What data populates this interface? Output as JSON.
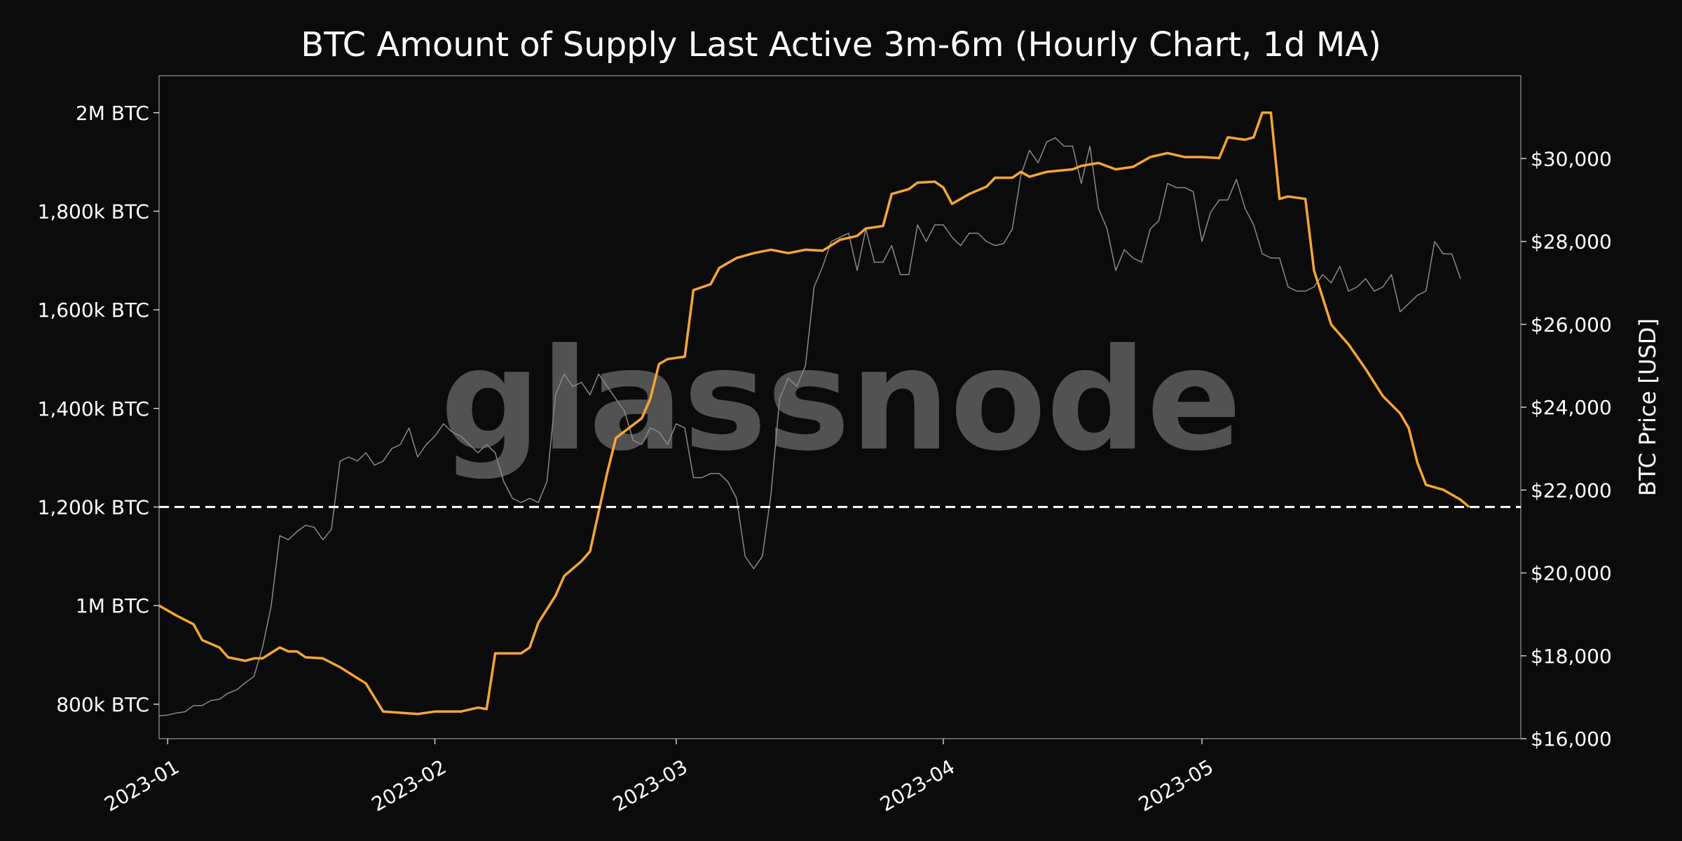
{
  "chart_data": {
    "type": "line",
    "title": "BTC Amount of Supply Last Active 3m-6m (Hourly Chart, 1d MA)",
    "watermark": "glassnode",
    "y_left": {
      "range": [
        730000,
        2075000
      ],
      "ticks": [
        {
          "value": 800000,
          "label": "800k BTC"
        },
        {
          "value": 1000000,
          "label": "1M BTC"
        },
        {
          "value": 1200000,
          "label": "1,200k BTC"
        },
        {
          "value": 1400000,
          "label": "1,400k BTC"
        },
        {
          "value": 1600000,
          "label": "1,600k BTC"
        },
        {
          "value": 1800000,
          "label": "1,800k BTC"
        },
        {
          "value": 2000000,
          "label": "2M BTC"
        }
      ]
    },
    "y_right": {
      "label": "BTC Price [USD]",
      "range": [
        16000,
        32000
      ],
      "ticks": [
        {
          "value": 16000,
          "label": "$16,000"
        },
        {
          "value": 18000,
          "label": "$18,000"
        },
        {
          "value": 20000,
          "label": "$20,000"
        },
        {
          "value": 22000,
          "label": "$22,000"
        },
        {
          "value": 24000,
          "label": "$24,000"
        },
        {
          "value": 26000,
          "label": "$26,000"
        },
        {
          "value": 28000,
          "label": "$28,000"
        },
        {
          "value": 30000,
          "label": "$30,000"
        }
      ]
    },
    "x_axis": {
      "range": [
        "2022-12-31",
        "2023-06-07"
      ],
      "ticks": [
        {
          "value": "2023-01-01",
          "label": "2023-01"
        },
        {
          "value": "2023-02-01",
          "label": "2023-02"
        },
        {
          "value": "2023-03-01",
          "label": "2023-03"
        },
        {
          "value": "2023-04-01",
          "label": "2023-04"
        },
        {
          "value": "2023-05-01",
          "label": "2023-05"
        }
      ]
    },
    "reference_line": {
      "value": 1200000,
      "style": "dashed",
      "color": "#ffffff"
    },
    "series": [
      {
        "axis": "left",
        "color": "#f7a634",
        "points": [
          [
            "2022-12-31",
            1000000
          ],
          [
            "2023-01-02",
            980000
          ],
          [
            "2023-01-04",
            962000
          ],
          [
            "2023-01-05",
            930000
          ],
          [
            "2023-01-07",
            915000
          ],
          [
            "2023-01-08",
            895000
          ],
          [
            "2023-01-10",
            888000
          ],
          [
            "2023-01-11",
            893000
          ],
          [
            "2023-01-12",
            893000
          ],
          [
            "2023-01-14",
            915000
          ],
          [
            "2023-01-15",
            907000
          ],
          [
            "2023-01-16",
            907000
          ],
          [
            "2023-01-17",
            895000
          ],
          [
            "2023-01-19",
            893000
          ],
          [
            "2023-01-21",
            875000
          ],
          [
            "2023-01-24",
            842000
          ],
          [
            "2023-01-26",
            785000
          ],
          [
            "2023-01-30",
            780000
          ],
          [
            "2023-02-01",
            785000
          ],
          [
            "2023-02-04",
            785000
          ],
          [
            "2023-02-06",
            793000
          ],
          [
            "2023-02-07",
            790000
          ],
          [
            "2023-02-08",
            903000
          ],
          [
            "2023-02-11",
            903000
          ],
          [
            "2023-02-12",
            915000
          ],
          [
            "2023-02-13",
            965000
          ],
          [
            "2023-02-15",
            1020000
          ],
          [
            "2023-02-16",
            1060000
          ],
          [
            "2023-02-18",
            1090000
          ],
          [
            "2023-02-19",
            1110000
          ],
          [
            "2023-02-20",
            1190000
          ],
          [
            "2023-02-21",
            1270000
          ],
          [
            "2023-02-22",
            1340000
          ],
          [
            "2023-02-25",
            1380000
          ],
          [
            "2023-02-26",
            1420000
          ],
          [
            "2023-02-27",
            1490000
          ],
          [
            "2023-02-28",
            1500000
          ],
          [
            "2023-03-02",
            1505000
          ],
          [
            "2023-03-03",
            1640000
          ],
          [
            "2023-03-05",
            1652000
          ],
          [
            "2023-03-06",
            1685000
          ],
          [
            "2023-03-08",
            1705000
          ],
          [
            "2023-03-10",
            1715000
          ],
          [
            "2023-03-12",
            1722000
          ],
          [
            "2023-03-14",
            1715000
          ],
          [
            "2023-03-16",
            1722000
          ],
          [
            "2023-03-18",
            1720000
          ],
          [
            "2023-03-20",
            1742000
          ],
          [
            "2023-03-22",
            1750000
          ],
          [
            "2023-03-23",
            1765000
          ],
          [
            "2023-03-25",
            1770000
          ],
          [
            "2023-03-26",
            1835000
          ],
          [
            "2023-03-28",
            1845000
          ],
          [
            "2023-03-29",
            1858000
          ],
          [
            "2023-03-31",
            1860000
          ],
          [
            "2023-04-01",
            1848000
          ],
          [
            "2023-04-02",
            1815000
          ],
          [
            "2023-04-04",
            1835000
          ],
          [
            "2023-04-06",
            1850000
          ],
          [
            "2023-04-07",
            1868000
          ],
          [
            "2023-04-09",
            1868000
          ],
          [
            "2023-04-10",
            1880000
          ],
          [
            "2023-04-11",
            1870000
          ],
          [
            "2023-04-13",
            1880000
          ],
          [
            "2023-04-16",
            1885000
          ],
          [
            "2023-04-17",
            1892000
          ],
          [
            "2023-04-19",
            1898000
          ],
          [
            "2023-04-21",
            1885000
          ],
          [
            "2023-04-23",
            1890000
          ],
          [
            "2023-04-25",
            1910000
          ],
          [
            "2023-04-27",
            1918000
          ],
          [
            "2023-04-29",
            1910000
          ],
          [
            "2023-05-01",
            1910000
          ],
          [
            "2023-05-03",
            1908000
          ],
          [
            "2023-05-04",
            1950000
          ],
          [
            "2023-05-06",
            1945000
          ],
          [
            "2023-05-07",
            1950000
          ],
          [
            "2023-05-08",
            2000000
          ],
          [
            "2023-05-09",
            2000000
          ],
          [
            "2023-05-10",
            1825000
          ],
          [
            "2023-05-11",
            1830000
          ],
          [
            "2023-05-13",
            1825000
          ],
          [
            "2023-05-14",
            1680000
          ],
          [
            "2023-05-16",
            1570000
          ],
          [
            "2023-05-18",
            1530000
          ],
          [
            "2023-05-20",
            1480000
          ],
          [
            "2023-05-22",
            1425000
          ],
          [
            "2023-05-24",
            1390000
          ],
          [
            "2023-05-25",
            1360000
          ],
          [
            "2023-05-26",
            1290000
          ],
          [
            "2023-05-27",
            1245000
          ],
          [
            "2023-05-29",
            1235000
          ],
          [
            "2023-05-31",
            1215000
          ],
          [
            "2023-06-01",
            1200000
          ]
        ]
      },
      {
        "axis": "right",
        "color": "#8a8a8a",
        "points": [
          [
            "2022-12-31",
            16550
          ],
          [
            "2023-01-01",
            16570
          ],
          [
            "2023-01-02",
            16620
          ],
          [
            "2023-01-03",
            16650
          ],
          [
            "2023-01-04",
            16800
          ],
          [
            "2023-01-05",
            16800
          ],
          [
            "2023-01-06",
            16920
          ],
          [
            "2023-01-07",
            16950
          ],
          [
            "2023-01-08",
            17100
          ],
          [
            "2023-01-09",
            17180
          ],
          [
            "2023-01-10",
            17350
          ],
          [
            "2023-01-11",
            17500
          ],
          [
            "2023-01-12",
            18200
          ],
          [
            "2023-01-13",
            19200
          ],
          [
            "2023-01-14",
            20900
          ],
          [
            "2023-01-15",
            20800
          ],
          [
            "2023-01-16",
            21000
          ],
          [
            "2023-01-17",
            21150
          ],
          [
            "2023-01-18",
            21100
          ],
          [
            "2023-01-19",
            20800
          ],
          [
            "2023-01-20",
            21050
          ],
          [
            "2023-01-21",
            22700
          ],
          [
            "2023-01-22",
            22800
          ],
          [
            "2023-01-23",
            22700
          ],
          [
            "2023-01-24",
            22900
          ],
          [
            "2023-01-25",
            22600
          ],
          [
            "2023-01-26",
            22700
          ],
          [
            "2023-01-27",
            23000
          ],
          [
            "2023-01-28",
            23100
          ],
          [
            "2023-01-29",
            23500
          ],
          [
            "2023-01-30",
            22800
          ],
          [
            "2023-01-31",
            23100
          ],
          [
            "2023-02-01",
            23300
          ],
          [
            "2023-02-02",
            23600
          ],
          [
            "2023-02-03",
            23400
          ],
          [
            "2023-02-04",
            23300
          ],
          [
            "2023-02-05",
            23100
          ],
          [
            "2023-02-06",
            22900
          ],
          [
            "2023-02-07",
            23100
          ],
          [
            "2023-02-08",
            22900
          ],
          [
            "2023-02-09",
            22200
          ],
          [
            "2023-02-10",
            21800
          ],
          [
            "2023-02-11",
            21700
          ],
          [
            "2023-02-12",
            21800
          ],
          [
            "2023-02-13",
            21700
          ],
          [
            "2023-02-14",
            22200
          ],
          [
            "2023-02-15",
            24300
          ],
          [
            "2023-02-16",
            24800
          ],
          [
            "2023-02-17",
            24500
          ],
          [
            "2023-02-18",
            24600
          ],
          [
            "2023-02-19",
            24300
          ],
          [
            "2023-02-20",
            24800
          ],
          [
            "2023-02-21",
            24500
          ],
          [
            "2023-02-22",
            24200
          ],
          [
            "2023-02-23",
            23900
          ],
          [
            "2023-02-24",
            23200
          ],
          [
            "2023-02-25",
            23100
          ],
          [
            "2023-02-26",
            23500
          ],
          [
            "2023-02-27",
            23400
          ],
          [
            "2023-02-28",
            23100
          ],
          [
            "2023-03-01",
            23600
          ],
          [
            "2023-03-02",
            23500
          ],
          [
            "2023-03-03",
            22300
          ],
          [
            "2023-03-04",
            22300
          ],
          [
            "2023-03-05",
            22400
          ],
          [
            "2023-03-06",
            22400
          ],
          [
            "2023-03-07",
            22200
          ],
          [
            "2023-03-08",
            21800
          ],
          [
            "2023-03-09",
            20400
          ],
          [
            "2023-03-10",
            20100
          ],
          [
            "2023-03-11",
            20400
          ],
          [
            "2023-03-12",
            21900
          ],
          [
            "2023-03-13",
            24200
          ],
          [
            "2023-03-14",
            24700
          ],
          [
            "2023-03-15",
            24500
          ],
          [
            "2023-03-16",
            25000
          ],
          [
            "2023-03-17",
            26900
          ],
          [
            "2023-03-18",
            27400
          ],
          [
            "2023-03-19",
            28000
          ],
          [
            "2023-03-20",
            28100
          ],
          [
            "2023-03-21",
            28200
          ],
          [
            "2023-03-22",
            27300
          ],
          [
            "2023-03-23",
            28300
          ],
          [
            "2023-03-24",
            27500
          ],
          [
            "2023-03-25",
            27500
          ],
          [
            "2023-03-26",
            27900
          ],
          [
            "2023-03-27",
            27200
          ],
          [
            "2023-03-28",
            27200
          ],
          [
            "2023-03-29",
            28400
          ],
          [
            "2023-03-30",
            28000
          ],
          [
            "2023-03-31",
            28400
          ],
          [
            "2023-04-01",
            28400
          ],
          [
            "2023-04-02",
            28100
          ],
          [
            "2023-04-03",
            27900
          ],
          [
            "2023-04-04",
            28200
          ],
          [
            "2023-04-05",
            28200
          ],
          [
            "2023-04-06",
            28000
          ],
          [
            "2023-04-07",
            27900
          ],
          [
            "2023-04-08",
            27950
          ],
          [
            "2023-04-09",
            28300
          ],
          [
            "2023-04-10",
            29600
          ],
          [
            "2023-04-11",
            30200
          ],
          [
            "2023-04-12",
            29900
          ],
          [
            "2023-04-13",
            30400
          ],
          [
            "2023-04-14",
            30500
          ],
          [
            "2023-04-15",
            30300
          ],
          [
            "2023-04-16",
            30300
          ],
          [
            "2023-04-17",
            29400
          ],
          [
            "2023-04-18",
            30300
          ],
          [
            "2023-04-19",
            28800
          ],
          [
            "2023-04-20",
            28300
          ],
          [
            "2023-04-21",
            27300
          ],
          [
            "2023-04-22",
            27800
          ],
          [
            "2023-04-23",
            27600
          ],
          [
            "2023-04-24",
            27500
          ],
          [
            "2023-04-25",
            28300
          ],
          [
            "2023-04-26",
            28500
          ],
          [
            "2023-04-27",
            29400
          ],
          [
            "2023-04-28",
            29300
          ],
          [
            "2023-04-29",
            29300
          ],
          [
            "2023-04-30",
            29200
          ],
          [
            "2023-05-01",
            28000
          ],
          [
            "2023-05-02",
            28700
          ],
          [
            "2023-05-03",
            29000
          ],
          [
            "2023-05-04",
            29000
          ],
          [
            "2023-05-05",
            29500
          ],
          [
            "2023-05-06",
            28800
          ],
          [
            "2023-05-07",
            28400
          ],
          [
            "2023-05-08",
            27700
          ],
          [
            "2023-05-09",
            27600
          ],
          [
            "2023-05-10",
            27600
          ],
          [
            "2023-05-11",
            26900
          ],
          [
            "2023-05-12",
            26800
          ],
          [
            "2023-05-13",
            26800
          ],
          [
            "2023-05-14",
            26900
          ],
          [
            "2023-05-15",
            27200
          ],
          [
            "2023-05-16",
            27000
          ],
          [
            "2023-05-17",
            27400
          ],
          [
            "2023-05-18",
            26800
          ],
          [
            "2023-05-19",
            26900
          ],
          [
            "2023-05-20",
            27100
          ],
          [
            "2023-05-21",
            26800
          ],
          [
            "2023-05-22",
            26900
          ],
          [
            "2023-05-23",
            27200
          ],
          [
            "2023-05-24",
            26300
          ],
          [
            "2023-05-25",
            26500
          ],
          [
            "2023-05-26",
            26700
          ],
          [
            "2023-05-27",
            26800
          ],
          [
            "2023-05-28",
            28000
          ],
          [
            "2023-05-29",
            27700
          ],
          [
            "2023-05-30",
            27700
          ],
          [
            "2023-05-31",
            27100
          ]
        ]
      }
    ]
  }
}
